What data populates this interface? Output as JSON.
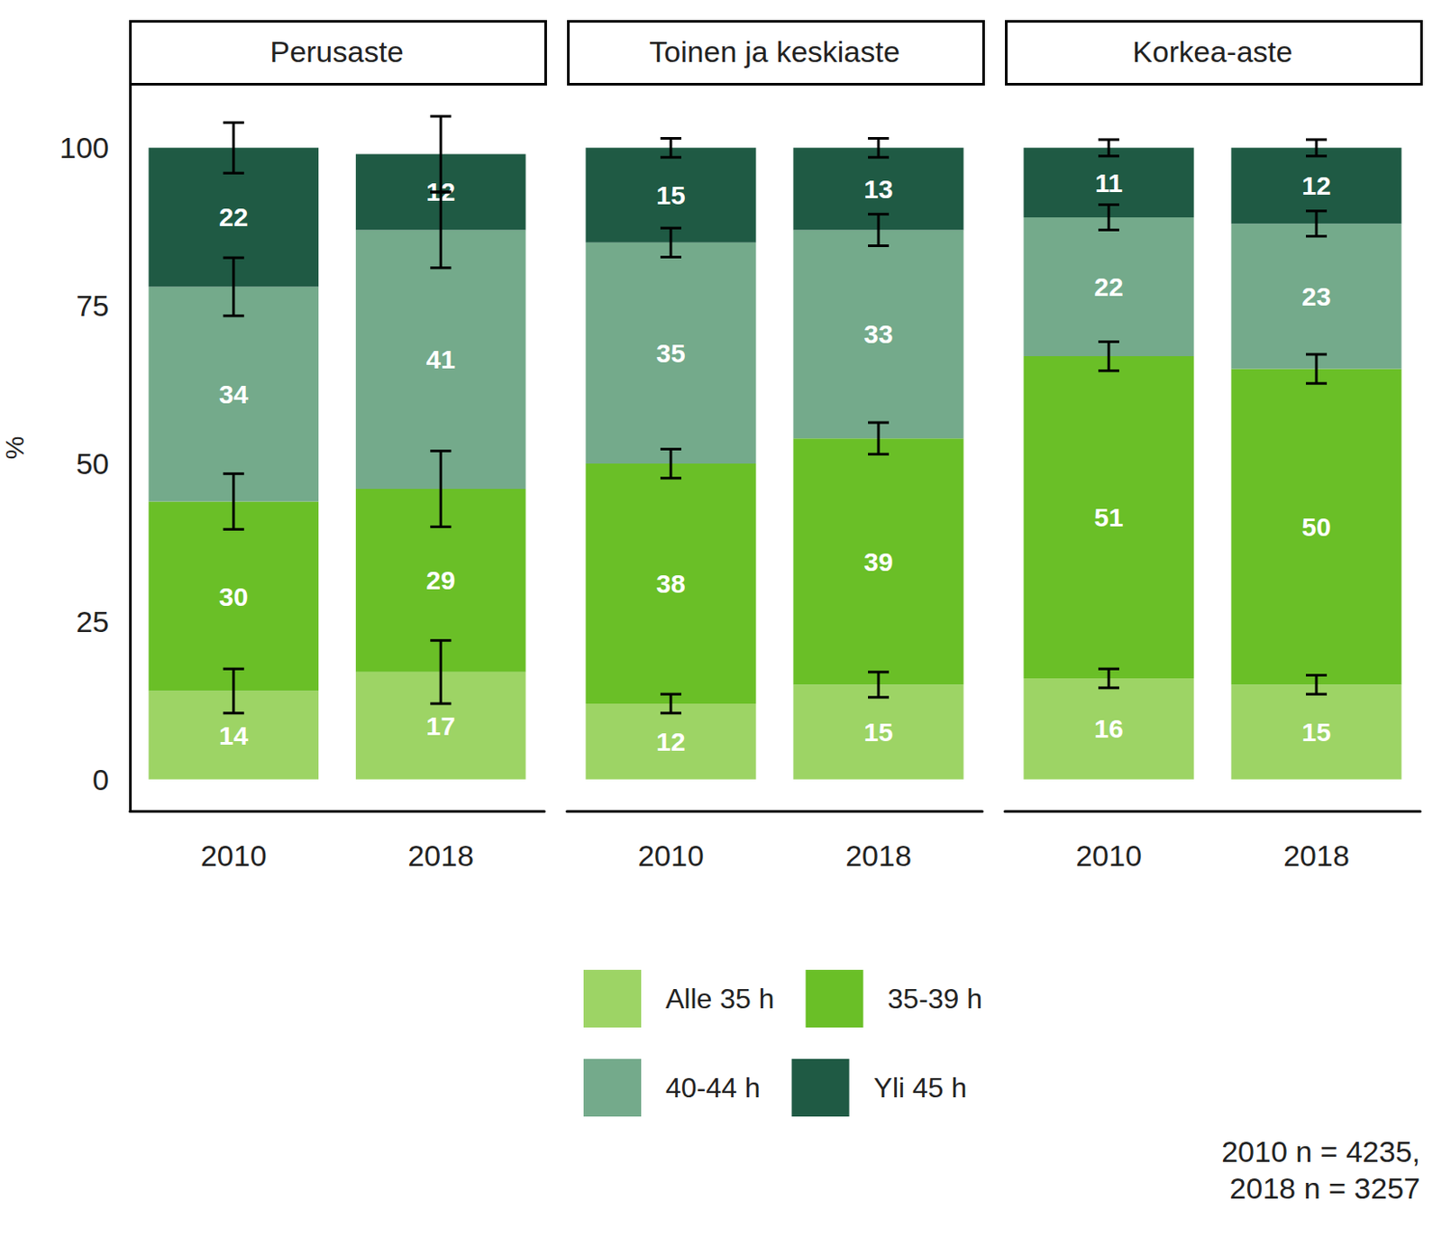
{
  "chart_data": [
    {
      "type": "bar",
      "title": "Perusaste",
      "y_label": "%",
      "legend": "bottom",
      "stacked": true,
      "data_labels": true,
      "grid": false,
      "categories": [
        "2010",
        "2018"
      ],
      "ylim": [
        -5,
        110
      ],
      "yticks": [
        0,
        25,
        50,
        75,
        100
      ],
      "tick_labels": "y",
      "series": [
        {
          "name": "Alle 35 h",
          "color": "#9dd465",
          "values": [
            14,
            17
          ],
          "errors": [
            3.5,
            5
          ]
        },
        {
          "name": "35-39 h",
          "color": "#6abf27",
          "values": [
            30,
            29
          ],
          "errors": [
            4.4,
            6
          ]
        },
        {
          "name": "40-44 h",
          "color": "#74aa8b",
          "values": [
            34,
            41
          ],
          "errors": [
            4.6,
            6
          ]
        },
        {
          "name": "Yli 45 h",
          "color": "#1f5a44",
          "values": [
            22,
            12
          ],
          "errors": [
            4,
            6
          ]
        }
      ]
    },
    {
      "type": "bar",
      "title": "Toinen ja keskiaste",
      "stacked": true,
      "data_labels": true,
      "grid": false,
      "categories": [
        "2010",
        "2018"
      ],
      "ylim": [
        -5,
        110
      ],
      "yticks": [
        0,
        25,
        50,
        75,
        100
      ],
      "tick_labels": "x",
      "series": [
        {
          "name": "Alle 35 h",
          "color": "#9dd465",
          "values": [
            12,
            15
          ],
          "errors": [
            1.5,
            2
          ]
        },
        {
          "name": "35-39 h",
          "color": "#6abf27",
          "values": [
            38,
            39
          ],
          "errors": [
            2.3,
            2.5
          ]
        },
        {
          "name": "40-44 h",
          "color": "#74aa8b",
          "values": [
            35,
            33
          ],
          "errors": [
            2.3,
            2.5
          ]
        },
        {
          "name": "Yli 45 h",
          "color": "#1f5a44",
          "values": [
            15,
            13
          ],
          "errors": [
            1.5,
            1.5
          ]
        }
      ]
    },
    {
      "type": "bar",
      "title": "Korkea-aste",
      "stacked": true,
      "data_labels": true,
      "grid": false,
      "categories": [
        "2010",
        "2018"
      ],
      "ylim": [
        -5,
        110
      ],
      "yticks": [
        0,
        25,
        50,
        75,
        100
      ],
      "tick_labels": "x",
      "annotations": [
        "2010 n = 4235,",
        "2018 n = 3257"
      ],
      "series": [
        {
          "name": "Alle 35 h",
          "color": "#9dd465",
          "values": [
            16,
            15
          ],
          "errors": [
            1.5,
            1.5
          ]
        },
        {
          "name": "35-39 h",
          "color": "#6abf27",
          "values": [
            51,
            50
          ],
          "errors": [
            2.3,
            2.3
          ]
        },
        {
          "name": "40-44 h",
          "color": "#74aa8b",
          "values": [
            22,
            23
          ],
          "errors": [
            2,
            2
          ]
        },
        {
          "name": "Yli 45 h",
          "color": "#1f5a44",
          "values": [
            11,
            12
          ],
          "errors": [
            1.3,
            1.3
          ]
        }
      ]
    }
  ]
}
